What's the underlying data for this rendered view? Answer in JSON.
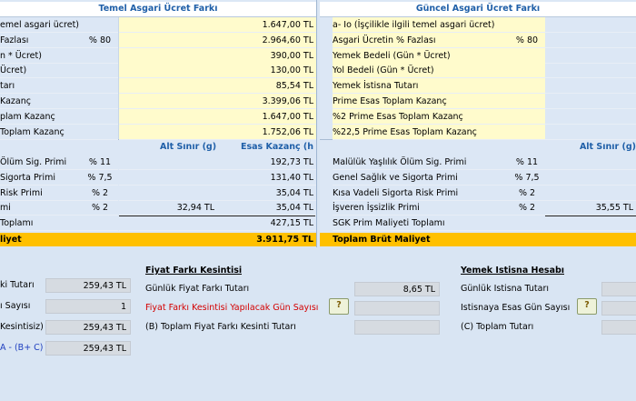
{
  "left": {
    "header": "Temel Asgari Ücret Farkı",
    "rows": [
      {
        "label": "emel asgari ücret)",
        "pct": "",
        "value": "1.647,00 TL"
      },
      {
        "label": " Fazlası",
        "pct": "% 80",
        "value": "2.964,60 TL"
      },
      {
        "label": "n * Ücret)",
        "pct": "",
        "value": "390,00 TL"
      },
      {
        "label": " Ücret)",
        "pct": "",
        "value": "130,00 TL"
      },
      {
        "label": "tarı",
        "pct": "",
        "value": "85,54 TL"
      },
      {
        "label": " Kazanç",
        "pct": "",
        "value": "3.399,06 TL"
      },
      {
        "label": "plam Kazanç",
        "pct": "",
        "value": "1.647,00 TL"
      },
      {
        "label": " Toplam Kazanç",
        "pct": "",
        "value": "1.752,06 TL"
      }
    ],
    "sub_alt": "Alt Sınır (g)",
    "sub_esas": "Esas Kazanç (h)",
    "rows2": [
      {
        "label": "Ölüm Sig. Primi",
        "pct": "% 11",
        "mid": "",
        "value": "192,73 TL"
      },
      {
        "label": "Sigorta Primi",
        "pct": "% 7,5",
        "mid": "",
        "value": "131,40 TL"
      },
      {
        "label": "Risk Primi",
        "pct": "% 2",
        "mid": "",
        "value": "35,04 TL"
      },
      {
        "label": "mi",
        "pct": "% 2",
        "mid": "32,94 TL",
        "value": "35,04 TL"
      },
      {
        "label": "Toplamı",
        "pct": "",
        "mid": "",
        "value": "427,15 TL"
      }
    ],
    "total_label": "liyet",
    "total_value": "3.911,75 TL"
  },
  "right": {
    "header": "Güncel Asgari Ücret Farkı",
    "rows": [
      {
        "label": "a- Io (İşçilikle ilgili temel asgari ücret)",
        "pct": ""
      },
      {
        "label": "Asgari Ücretin % Fazlası",
        "pct": "% 80"
      },
      {
        "label": "Yemek Bedeli (Gün * Ücret)",
        "pct": ""
      },
      {
        "label": "Yol Bedeli (Gün * Ücret)",
        "pct": ""
      },
      {
        "label": "Yemek İstisna Tutarı",
        "pct": ""
      },
      {
        "label": "Prime Esas Toplam Kazanç",
        "pct": ""
      },
      {
        "label": "%2 Prime Esas Toplam Kazanç",
        "pct": ""
      },
      {
        "label": "%22,5 Prime Esas Toplam Kazanç",
        "pct": ""
      }
    ],
    "sub_alt": "Alt Sınır (g)",
    "rows2": [
      {
        "label": "Malülük Yaşlılık Ölüm Sig. Primi",
        "pct": "% 11",
        "mid": ""
      },
      {
        "label": "Genel Sağlık ve Sigorta Primi",
        "pct": "% 7,5",
        "mid": ""
      },
      {
        "label": "Kısa Vadeli Sigorta Risk Primi",
        "pct": "% 2",
        "mid": ""
      },
      {
        "label": "İşveren İşsizlik Primi",
        "pct": "% 2",
        "mid": "35,55 TL"
      },
      {
        "label": "SGK Prim Maliyeti Toplamı",
        "pct": "",
        "mid": ""
      }
    ],
    "total_label": "Toplam Brüt Maliyet"
  },
  "bottom": {
    "col1": [
      {
        "label": "ki Tutarı",
        "value": "259,43 TL"
      },
      {
        "label": "ı Sayısı",
        "value": "1"
      },
      {
        "label": "Kesintisiz)",
        "value": "259,43 TL"
      },
      {
        "label": "A - (B+ C)",
        "value": "259,43 TL"
      }
    ],
    "fiyat_title": "Fiyat Farkı Kesintisi",
    "fiyat_rows": [
      {
        "label": "Günlük Fiyat Farkı Tutarı",
        "value": "8,65 TL"
      },
      {
        "label": "Fiyat Farkı Kesintisi Yapılacak Gün Sayısı",
        "value": ""
      },
      {
        "label": "(B) Toplam Fiyat Farkı Kesinti Tutarı",
        "value": ""
      }
    ],
    "yemek_title": "Yemek İstisna Hesabı",
    "yemek_rows": [
      {
        "label": "Günlük İstisna Tutarı"
      },
      {
        "label": "İstisnaya Esas Gün Sayısı"
      },
      {
        "label": "(C) Toplam Tutarı"
      }
    ],
    "help_icon": "?"
  }
}
